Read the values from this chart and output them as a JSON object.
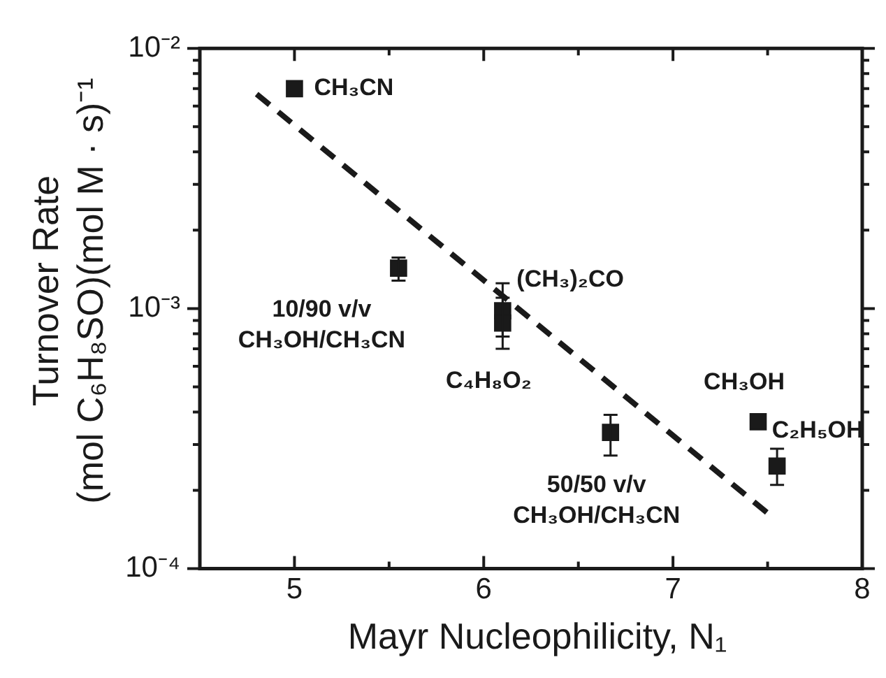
{
  "chart_data": {
    "type": "scatter",
    "xlabel": "Mayr Nucleophilicity, N₁",
    "ylabel": "Turnover Rate\n(mol C₆H₈SO)(mol M · s)⁻¹",
    "xlim": [
      4.5,
      8
    ],
    "xticks": [
      {
        "value": 4.5,
        "label": null
      },
      5,
      {
        "value": 5.5,
        "label": null
      },
      6,
      {
        "value": 6.5,
        "label": null
      },
      7,
      {
        "value": 7.5,
        "label": null
      },
      8
    ],
    "ylim": [
      0.0001,
      0.01
    ],
    "log": "y",
    "yticks": [
      {
        "value": 0.0001,
        "label": "10⁻⁴"
      },
      {
        "value": 0.0002,
        "label": null
      },
      {
        "value": 0.0003,
        "label": null
      },
      {
        "value": 0.0004,
        "label": null
      },
      {
        "value": 0.0005,
        "label": null
      },
      {
        "value": 0.0006,
        "label": null
      },
      {
        "value": 0.0007,
        "label": null
      },
      {
        "value": 0.0008,
        "label": null
      },
      {
        "value": 0.0009,
        "label": null
      },
      {
        "value": 0.001,
        "label": "10⁻³"
      },
      {
        "value": 0.002,
        "label": null
      },
      {
        "value": 0.003,
        "label": null
      },
      {
        "value": 0.004,
        "label": null
      },
      {
        "value": 0.005,
        "label": null
      },
      {
        "value": 0.006,
        "label": null
      },
      {
        "value": 0.007,
        "label": null
      },
      {
        "value": 0.008,
        "label": null
      },
      {
        "value": 0.009,
        "label": null
      },
      {
        "value": 0.01,
        "label": "10⁻²"
      }
    ],
    "grid": false,
    "legend": false,
    "series": [
      {
        "color": "#1a1a1a",
        "marker": "square",
        "x": [
          5.0,
          5.55,
          6.1,
          6.1,
          6.67,
          7.45,
          7.55
        ],
        "values": [
          0.007,
          0.00143,
          0.00098,
          0.00088,
          0.000334,
          0.000367,
          0.000248
        ],
        "errors": [
          null,
          [
            0.00128,
            0.00157
          ],
          [
            0.00078,
            0.00125
          ],
          [
            0.0007,
            0.0011
          ],
          [
            0.000272,
            0.00039
          ],
          null,
          [
            0.00021,
            0.000289
          ]
        ]
      },
      {
        "type": "line",
        "color": "#1a1a1a",
        "line_style": "dashed",
        "marker": "none",
        "x": [
          4.8,
          7.53
        ],
        "values": [
          0.00667,
          0.000157
        ]
      }
    ],
    "annotations": [
      {
        "text": "CH₃CN",
        "x": 5.0,
        "y": 0.007
      },
      {
        "text": "10/90 v/v\nCH₃OH/CH₃CN",
        "x": 5.55,
        "y": 0.00143
      },
      {
        "text": "(CH₃)₂CO",
        "x": 6.1,
        "y": 0.00098
      },
      {
        "text": "C₄H₈O₂",
        "x": 6.1,
        "y": 0.00088
      },
      {
        "text": "50/50 v/v\nCH₃OH/CH₃CN",
        "x": 6.67,
        "y": 0.000334
      },
      {
        "text": "CH₃OH",
        "x": 7.45,
        "y": 0.000367
      },
      {
        "text": "C₂H₅OH",
        "x": 7.55,
        "y": 0.000248
      }
    ]
  }
}
